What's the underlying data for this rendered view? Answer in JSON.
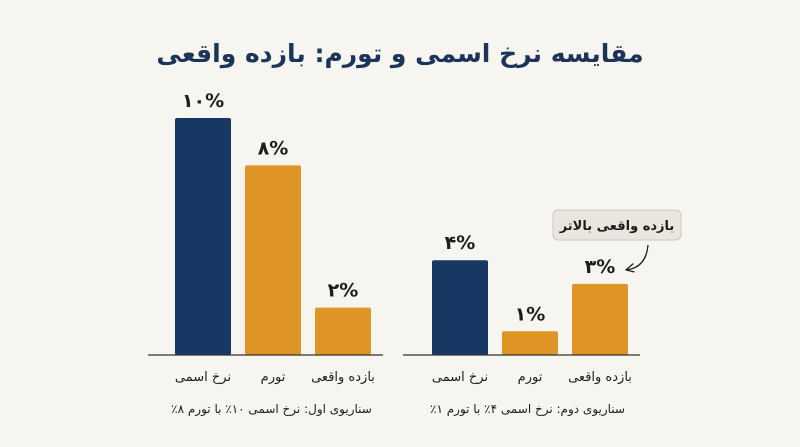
{
  "chart_data": {
    "type": "bar",
    "title": "مقایسه نرخ اسمی و تورم: بازده واقعی",
    "ylim": [
      0,
      10
    ],
    "colors": {
      "nominal": "#163863",
      "other": "#de9526",
      "axis": "#333333"
    },
    "groups": [
      {
        "label": "سناریوی اول: نرخ اسمی ۱۰٪ با تورم ۸٪",
        "categories": [
          "نرخ اسمی",
          "تورم",
          "بازده واقعی"
        ],
        "values": [
          10,
          8,
          2
        ],
        "value_labels": [
          "۱۰%",
          "۸%",
          "۲%"
        ]
      },
      {
        "label": "سناریوی دوم: نرخ اسمی ۴٪ با تورم ۱٪",
        "categories": [
          "نرخ اسمی",
          "تورم",
          "بازده واقعی"
        ],
        "values": [
          4,
          1,
          3
        ],
        "value_labels": [
          "۴%",
          "۱%",
          "۳%"
        ]
      }
    ],
    "annotation": {
      "text": "بازده واقعی بالاتر",
      "target": "group-2-bar-3"
    }
  }
}
